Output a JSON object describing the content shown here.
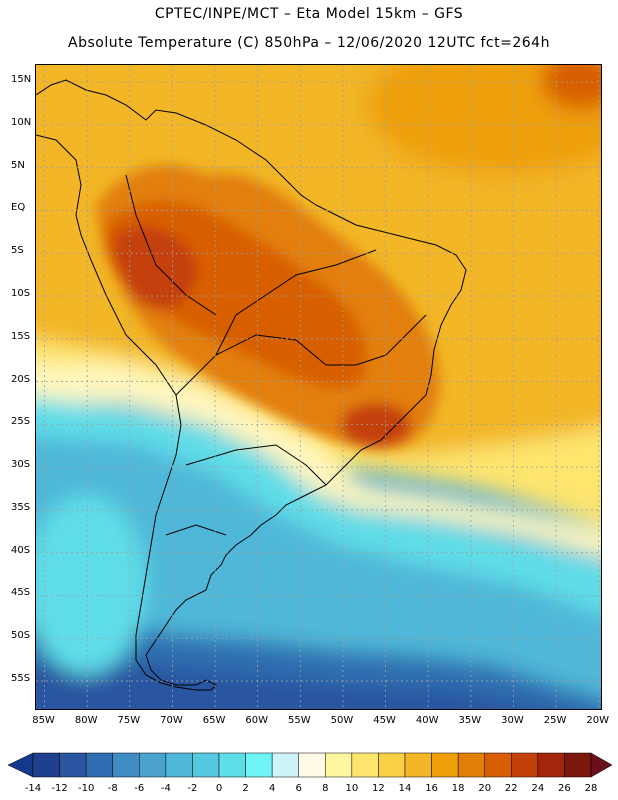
{
  "header": {
    "line1": "CPTEC/INPE/MCT –  Eta Model 15km – GFS",
    "line2": "Absolute Temperature (C) 850hPa – 12/06/2020 12UTC fct=264h"
  },
  "axes": {
    "lat_labels": [
      "15N",
      "10N",
      "5N",
      "EQ",
      "5S",
      "10S",
      "15S",
      "20S",
      "25S",
      "30S",
      "35S",
      "40S",
      "45S",
      "50S",
      "55S"
    ],
    "lat_values": [
      15,
      10,
      5,
      0,
      -5,
      -10,
      -15,
      -20,
      -25,
      -30,
      -35,
      -40,
      -45,
      -50,
      -55
    ],
    "lon_labels": [
      "85W",
      "80W",
      "75W",
      "70W",
      "65W",
      "60W",
      "55W",
      "50W",
      "45W",
      "40W",
      "35W",
      "30W",
      "25W",
      "20W"
    ],
    "lon_values": [
      -85,
      -80,
      -75,
      -70,
      -65,
      -60,
      -55,
      -50,
      -45,
      -40,
      -35,
      -30,
      -25,
      -20
    ],
    "lat_range": [
      -58.5,
      17
    ],
    "lon_range": [
      -86,
      -19.5
    ]
  },
  "colorbar": {
    "labels": [
      "-14",
      "-12",
      "-10",
      "-8",
      "-6",
      "-4",
      "-2",
      "0",
      "2",
      "4",
      "6",
      "8",
      "10",
      "12",
      "14",
      "16",
      "18",
      "20",
      "22",
      "24",
      "26",
      "28"
    ],
    "under_color": "#15388a",
    "over_color": "#6a0f1c",
    "colors": [
      "#1f3f8f",
      "#2a55a0",
      "#2f6fb1",
      "#3f8cc2",
      "#4aa3cf",
      "#4fb7d8",
      "#55c9df",
      "#5fdde8",
      "#6ff5f5",
      "#cdf3fb",
      "#fffbe6",
      "#fff7a0",
      "#fde56e",
      "#f9cf45",
      "#f2b626",
      "#efa00b",
      "#e27f08",
      "#d85e06",
      "#c4400a",
      "#a2260b",
      "#7c170d"
    ]
  },
  "field": {
    "description_colors": {
      "ocean_cold": "#2f6fb1",
      "ocean_cool": "#4fb7d8",
      "ocean_mild": "#5fdde8",
      "subtropic_pale": "#fff7a0",
      "tropic_yellow": "#f2b626",
      "tropic_orange": "#efa00b",
      "amazon_warm": "#e27f08",
      "amazon_hot": "#d85e06",
      "amazon_hottest": "#c4400a"
    }
  }
}
